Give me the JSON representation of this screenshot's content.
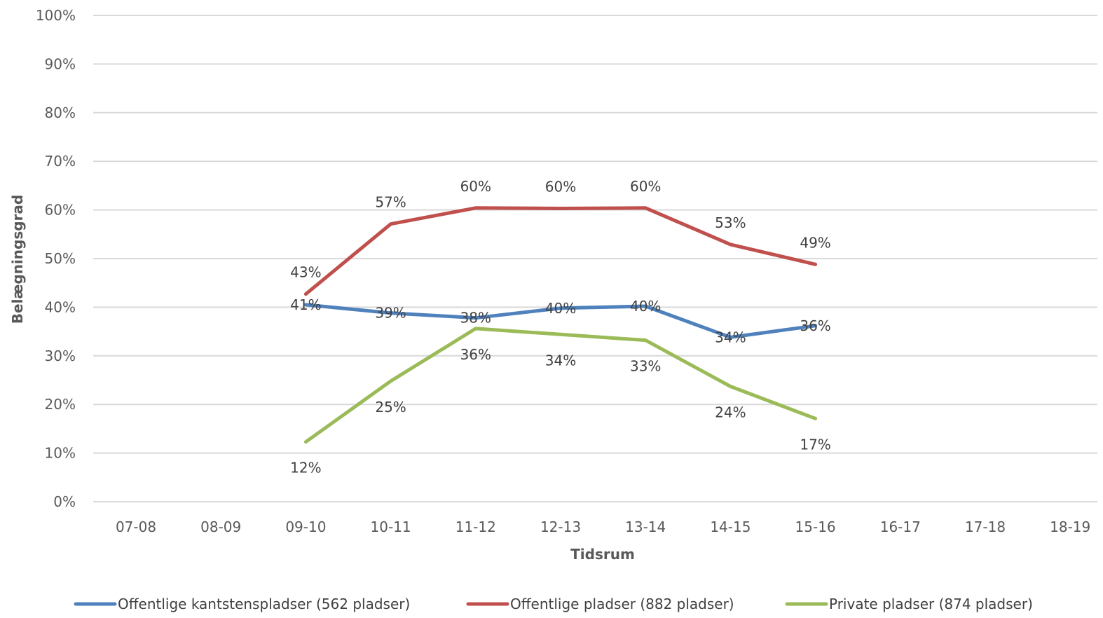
{
  "chart_data": {
    "type": "line",
    "categories": [
      "07-08",
      "08-09",
      "09-10",
      "10-11",
      "11-12",
      "12-13",
      "13-14",
      "14-15",
      "15-16",
      "16-17",
      "17-18",
      "18-19"
    ],
    "xlabel": "Tidsrum",
    "ylabel": "Belægningsgrad",
    "ylim": [
      0,
      100
    ],
    "yticks": [
      "0%",
      "10%",
      "20%",
      "30%",
      "40%",
      "50%",
      "60%",
      "70%",
      "80%",
      "90%",
      "100%"
    ],
    "grid": true,
    "legend_position": "bottom",
    "series": [
      {
        "name": "Offentlige kantstenspladser (562 pladser)",
        "color": "#4F81BD",
        "values": [
          null,
          null,
          40.5,
          38.8,
          37.8,
          39.8,
          40.2,
          33.8,
          36.2,
          null,
          null,
          null
        ],
        "labels": [
          null,
          null,
          "41%",
          "39%",
          "38%",
          "40%",
          "40%",
          "34%",
          "36%",
          null,
          null,
          null
        ]
      },
      {
        "name": "Offentlige pladser (882 pladser)",
        "color": "#C0504D",
        "values": [
          null,
          null,
          42.7,
          57.1,
          60.4,
          60.3,
          60.4,
          52.9,
          48.8,
          null,
          null,
          null
        ],
        "labels": [
          null,
          null,
          "43%",
          "57%",
          "60%",
          "60%",
          "60%",
          "53%",
          "49%",
          null,
          null,
          null
        ]
      },
      {
        "name": "Private pladser (874 pladser)",
        "color": "#9BBB59",
        "values": [
          null,
          null,
          12.3,
          24.8,
          35.6,
          34.4,
          33.2,
          23.7,
          17.1,
          null,
          null,
          null
        ],
        "labels": [
          null,
          null,
          "12%",
          "25%",
          "36%",
          "34%",
          "33%",
          "24%",
          "17%",
          null,
          null,
          null
        ]
      }
    ]
  }
}
